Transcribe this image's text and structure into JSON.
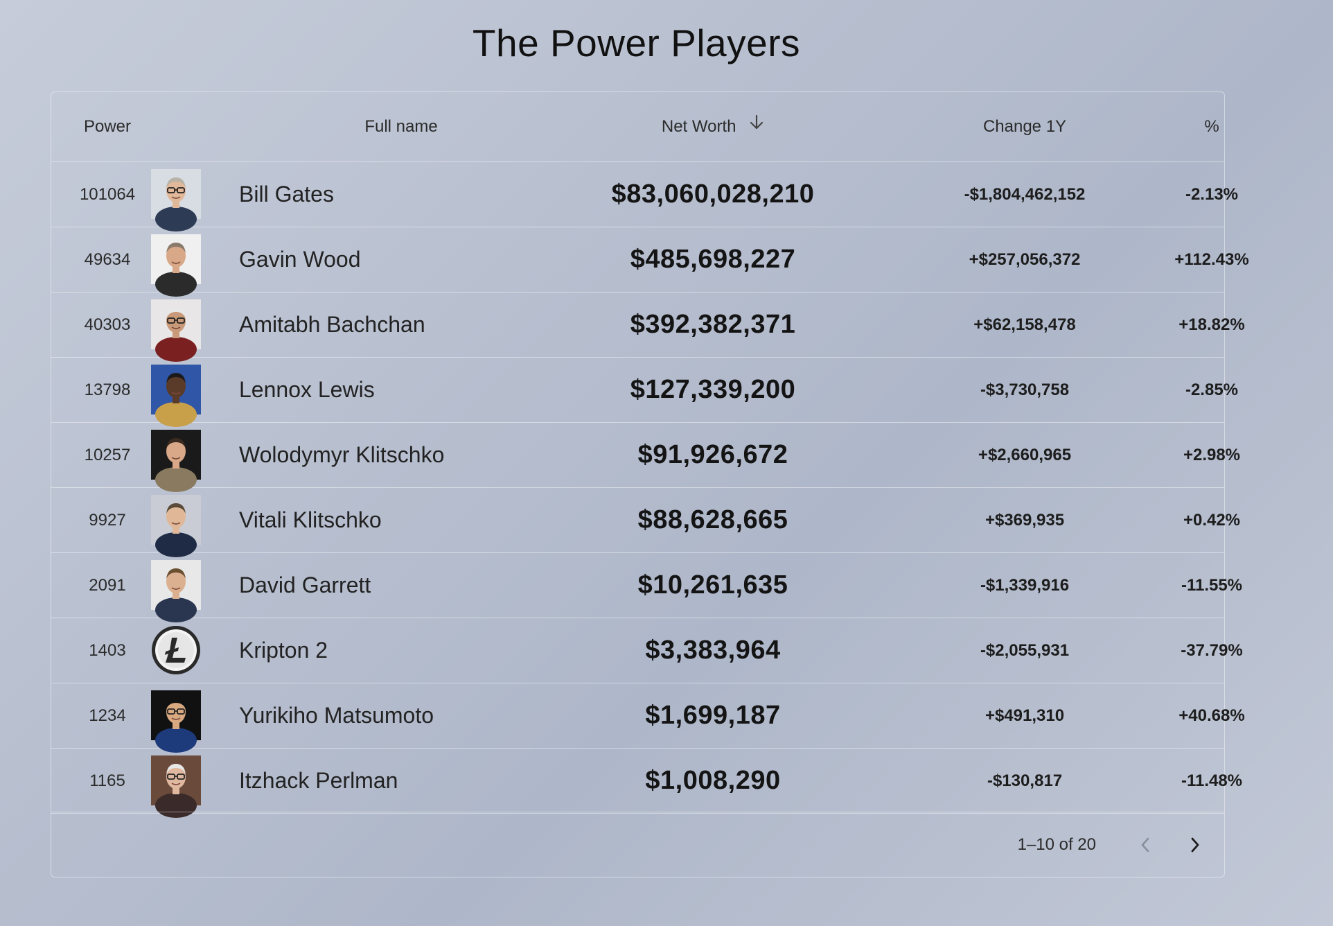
{
  "page": {
    "title": "The Power Players"
  },
  "table": {
    "headers": {
      "power": "Power",
      "full_name": "Full name",
      "net_worth": "Net Worth",
      "change": "Change 1Y",
      "percent": "%"
    },
    "rows": [
      {
        "power": "101064",
        "name": "Bill Gates",
        "net_worth": "$83,060,028,210",
        "change": "-$1,804,462,152",
        "percent": "-2.13%"
      },
      {
        "power": "49634",
        "name": "Gavin Wood",
        "net_worth": "$485,698,227",
        "change": "+$257,056,372",
        "percent": "+112.43%"
      },
      {
        "power": "40303",
        "name": "Amitabh Bachchan",
        "net_worth": "$392,382,371",
        "change": "+$62,158,478",
        "percent": "+18.82%"
      },
      {
        "power": "13798",
        "name": "Lennox Lewis",
        "net_worth": "$127,339,200",
        "change": "-$3,730,758",
        "percent": "-2.85%"
      },
      {
        "power": "10257",
        "name": "Wolodymyr Klitschko",
        "net_worth": "$91,926,672",
        "change": "+$2,660,965",
        "percent": "+2.98%"
      },
      {
        "power": "9927",
        "name": "Vitali Klitschko",
        "net_worth": "$88,628,665",
        "change": "+$369,935",
        "percent": "+0.42%"
      },
      {
        "power": "2091",
        "name": "David Garrett",
        "net_worth": "$10,261,635",
        "change": "-$1,339,916",
        "percent": "-11.55%"
      },
      {
        "power": "1403",
        "name": "Kripton 2",
        "net_worth": "$3,383,964",
        "change": "-$2,055,931",
        "percent": "-37.79%"
      },
      {
        "power": "1234",
        "name": "Yurikiho Matsumoto",
        "net_worth": "$1,699,187",
        "change": "+$491,310",
        "percent": "+40.68%"
      },
      {
        "power": "1165",
        "name": "Itzhack Perlman",
        "net_worth": "$1,008,290",
        "change": "-$130,817",
        "percent": "-11.48%"
      }
    ]
  },
  "pagination": {
    "range_label": "1–10 of 20"
  },
  "icons": {
    "sort": "arrow-down-icon",
    "prev": "chevron-left-icon",
    "next": "chevron-right-icon"
  }
}
